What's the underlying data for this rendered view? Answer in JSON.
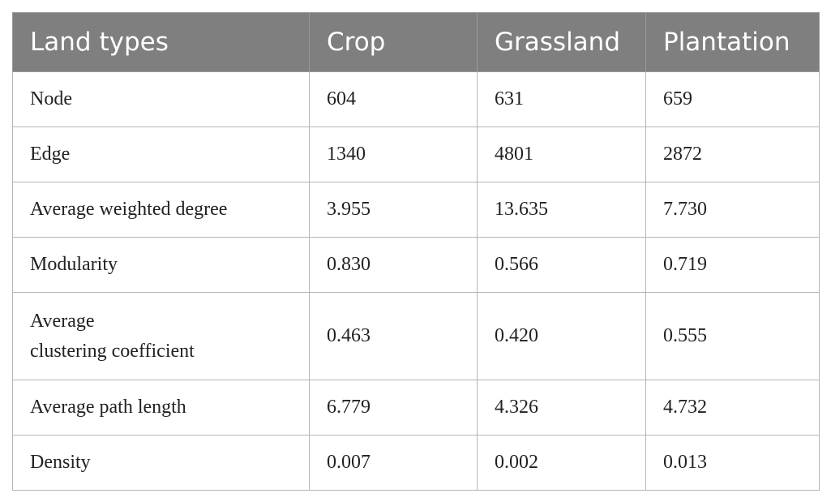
{
  "table": {
    "header": [
      "Land types",
      "Crop",
      "Grassland",
      "Plantation"
    ],
    "rows": [
      [
        "Node",
        "604",
        "631",
        "659"
      ],
      [
        "Edge",
        "1340",
        "4801",
        "2872"
      ],
      [
        "Average weighted degree",
        "3.955",
        "13.635",
        "7.730"
      ],
      [
        "Modularity",
        "0.830",
        "0.566",
        "0.719"
      ],
      [
        "Average\nclustering coefficient",
        "0.463",
        "0.420",
        "0.555"
      ],
      [
        "Average path length",
        "6.779",
        "4.326",
        "4.732"
      ],
      [
        "Density",
        "0.007",
        "0.002",
        "0.013"
      ]
    ]
  }
}
